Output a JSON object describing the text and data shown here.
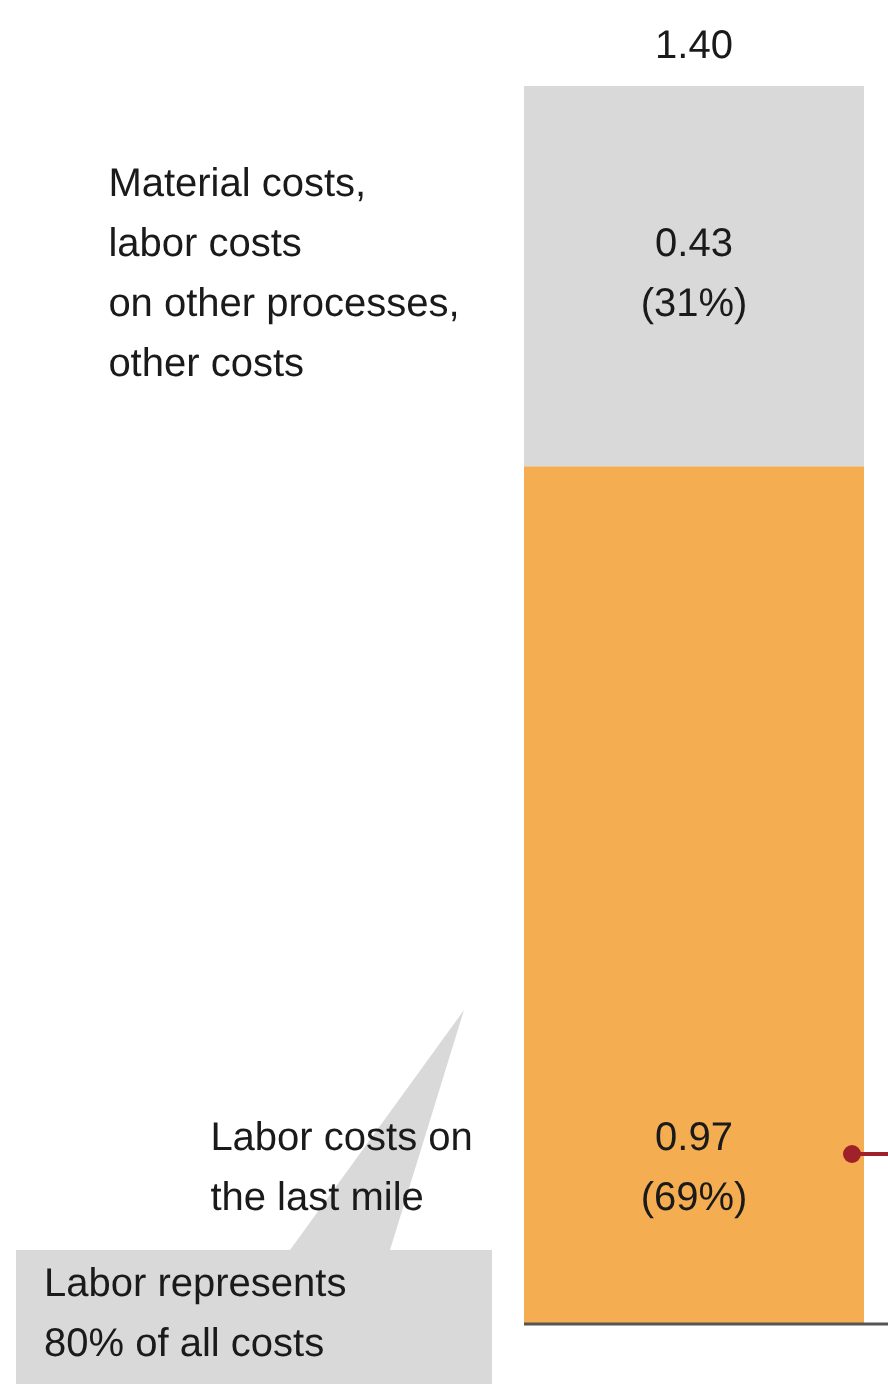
{
  "chart_data": {
    "type": "bar",
    "stacked": true,
    "categories": [
      null
    ],
    "ylim": [
      0,
      1.4
    ],
    "tick_labels": false,
    "series": [
      {
        "name": "Labor costs on\nthe last mile",
        "color": "#f5ad52",
        "values": [
          0.97
        ],
        "value_labels": [
          "0.97\n(69%)"
        ]
      },
      {
        "name": "Material costs,\nlabor costs\non other processes,\nother costs",
        "color": "#d9d9d9",
        "values": [
          0.43
        ],
        "value_labels": [
          "0.43\n(31%)"
        ]
      }
    ],
    "totals": [
      "1.40"
    ],
    "annotations": [
      "Labor represents\n80% of all costs"
    ]
  }
}
